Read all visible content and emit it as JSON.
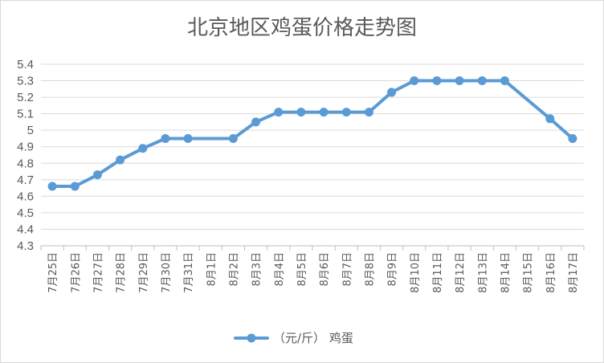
{
  "chart_data": {
    "type": "line",
    "title": "北京地区鸡蛋价格走势图",
    "categories": [
      "7月25日",
      "7月26日",
      "7月27日",
      "7月28日",
      "7月29日",
      "7月30日",
      "7月31日",
      "8月1日",
      "8月2日",
      "8月3日",
      "8月4日",
      "8月5日",
      "8月6日",
      "8月7日",
      "8月8日",
      "8月9日",
      "8月10日",
      "8月11日",
      "8月12日",
      "8月13日",
      "8月14日",
      "8月15日",
      "8月16日",
      "8月17日"
    ],
    "series": [
      {
        "name": "（元/斤） 鸡蛋",
        "color": "#5b9bd5",
        "values": [
          4.66,
          4.66,
          4.73,
          4.82,
          4.89,
          4.95,
          4.95,
          null,
          4.95,
          5.05,
          5.11,
          5.11,
          5.11,
          5.11,
          5.11,
          5.23,
          5.3,
          5.3,
          5.3,
          5.3,
          5.3,
          null,
          5.07,
          4.95
        ]
      }
    ],
    "yticks": [
      "4.3",
      "4.4",
      "4.5",
      "4.6",
      "4.7",
      "4.8",
      "4.9",
      "5",
      "5.1",
      "5.2",
      "5.3",
      "5.4"
    ],
    "ylim": [
      4.3,
      5.4
    ],
    "grid": true,
    "legend": "bottom"
  }
}
